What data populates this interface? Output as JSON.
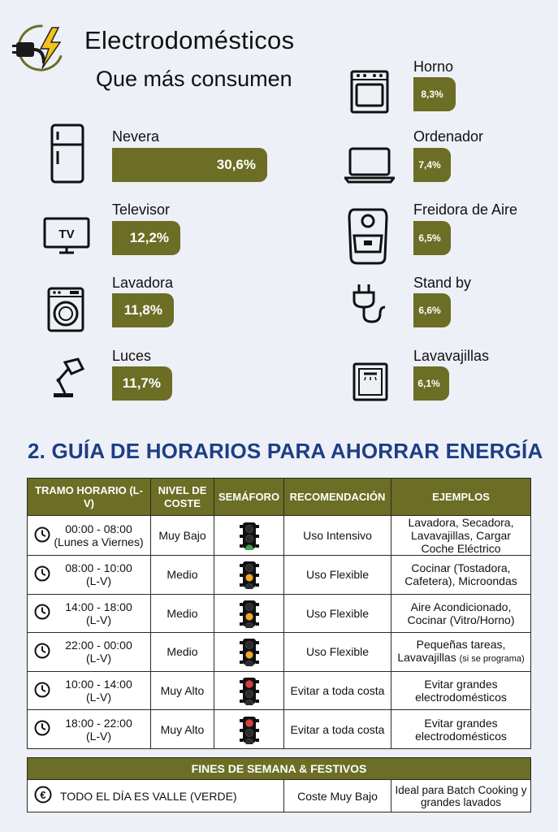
{
  "header": {
    "title_line1": "Electrodomésticos",
    "title_line2": "Que más consumen"
  },
  "colors": {
    "accent": "#6b6e24",
    "section_title": "#1c3e86"
  },
  "appliances": [
    {
      "name": "Nevera",
      "percent": "30,6%",
      "icon": "fridge-icon"
    },
    {
      "name": "Televisor",
      "percent": "12,2%",
      "icon": "tv-icon",
      "icon_text": "TV"
    },
    {
      "name": "Lavadora",
      "percent": "11,8%",
      "icon": "washing-machine-icon"
    },
    {
      "name": "Luces",
      "percent": "11,7%",
      "icon": "desk-lamp-icon"
    },
    {
      "name": "Horno",
      "percent": "8,3%",
      "icon": "oven-icon"
    },
    {
      "name": "Ordenador",
      "percent": "7,4%",
      "icon": "laptop-icon"
    },
    {
      "name": "Freidora de Aire",
      "percent": "6,5%",
      "icon": "air-fryer-icon"
    },
    {
      "name": "Stand by",
      "percent": "6,6%",
      "icon": "plug-icon"
    },
    {
      "name": "Lavavajillas",
      "percent": "6,1%",
      "icon": "dishwasher-icon"
    }
  ],
  "schedule": {
    "section_title": "2. GUÍA DE HORARIOS PARA AHORRAR ENERGÍA",
    "headers": {
      "tramo": "TRAMO HORARIO (L-V)",
      "nivel": "NIVEL DE COSTE",
      "semaforo": "SEMÁFORO",
      "recomendacion": "RECOMENDACIÓN",
      "ejemplos": "EJEMPLOS"
    },
    "rows": [
      {
        "time": "00:00 - 08:00",
        "days": "(Lunes a Viernes)",
        "cost": "Muy Bajo",
        "light": "green",
        "rec": "Uso Intensivo",
        "examples": "Lavadora, Secadora, Lavavajillas, Cargar Coche Eléctrico",
        "note": ""
      },
      {
        "time": "08:00 - 10:00",
        "days": "(L-V)",
        "cost": "Medio",
        "light": "yellow",
        "rec": "Uso Flexible",
        "examples": "Cocinar (Tostadora, Cafetera), Microondas",
        "note": ""
      },
      {
        "time": "14:00 - 18:00",
        "days": "(L-V)",
        "cost": "Medio",
        "light": "yellow",
        "rec": "Uso Flexible",
        "examples": "Aire Acondicionado, Cocinar (Vitro/Horno)",
        "note": ""
      },
      {
        "time": "22:00 - 00:00",
        "days": "(L-V)",
        "cost": "Medio",
        "light": "yellow",
        "rec": "Uso Flexible",
        "examples": "Pequeñas tareas, Lavavajillas",
        "note": "(si se programa)"
      },
      {
        "time": "10:00 - 14:00",
        "days": "(L-V)",
        "cost": "Muy Alto",
        "light": "red",
        "rec": "Evitar a toda costa",
        "examples": "Evitar grandes electrodomésticos",
        "note": ""
      },
      {
        "time": "18:00 - 22:00",
        "days": "(L-V)",
        "cost": "Muy Alto",
        "light": "red",
        "rec": "Evitar a toda costa",
        "examples": "Evitar grandes electrodomésticos",
        "note": ""
      }
    ]
  },
  "weekend": {
    "header": "FINES DE SEMANA & FESTIVOS",
    "all_day": "TODO EL DÍA ES VALLE (VERDE)",
    "cost": "Coste Muy Bajo",
    "ideal": "Ideal para Batch Cooking y grandes lavados"
  }
}
